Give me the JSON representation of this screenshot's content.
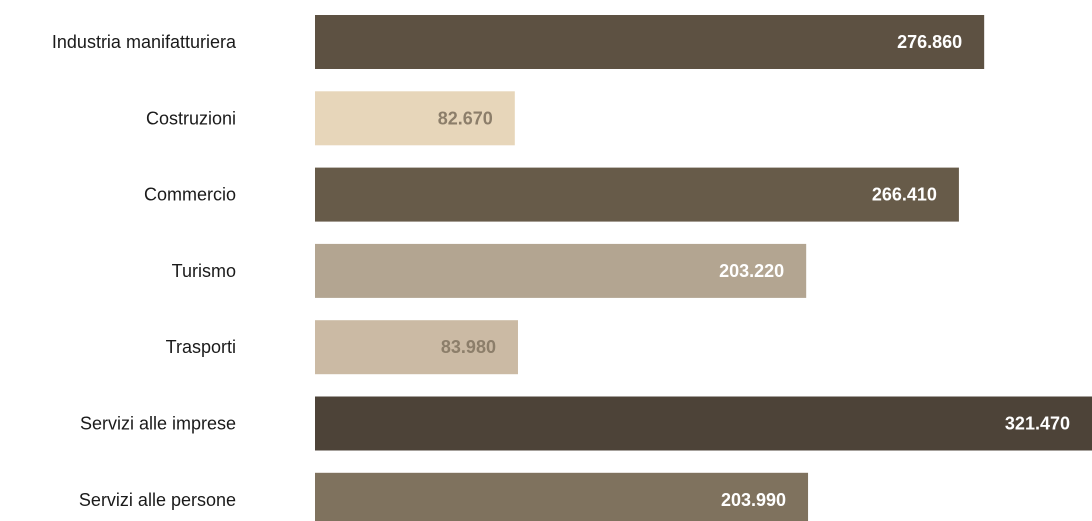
{
  "chart_data": {
    "type": "bar",
    "orientation": "horizontal",
    "categories": [
      "Industria manifatturiera",
      "Costruzioni",
      "Commercio",
      "Turismo",
      "Trasporti",
      "Servizi alle imprese",
      "Servizi alle persone"
    ],
    "values": [
      276860,
      82670,
      266410,
      203220,
      83980,
      321470,
      203990
    ],
    "value_labels": [
      "276.860",
      "82.670",
      "266.410",
      "203.220",
      "83.980",
      "321.470",
      "203.990"
    ],
    "bar_colors": [
      "#5d5142",
      "#e7d6ba",
      "#675b49",
      "#b3a591",
      "#cbbaa4",
      "#4d4338",
      "#7f725e"
    ],
    "label_colors": [
      "#ffffff",
      "#8c7e6a",
      "#ffffff",
      "#ffffff",
      "#8c7e6a",
      "#ffffff",
      "#ffffff"
    ],
    "title": "",
    "xlabel": "",
    "ylabel": "",
    "xlim": [
      0,
      321470
    ],
    "grid": false,
    "legend": false
  }
}
